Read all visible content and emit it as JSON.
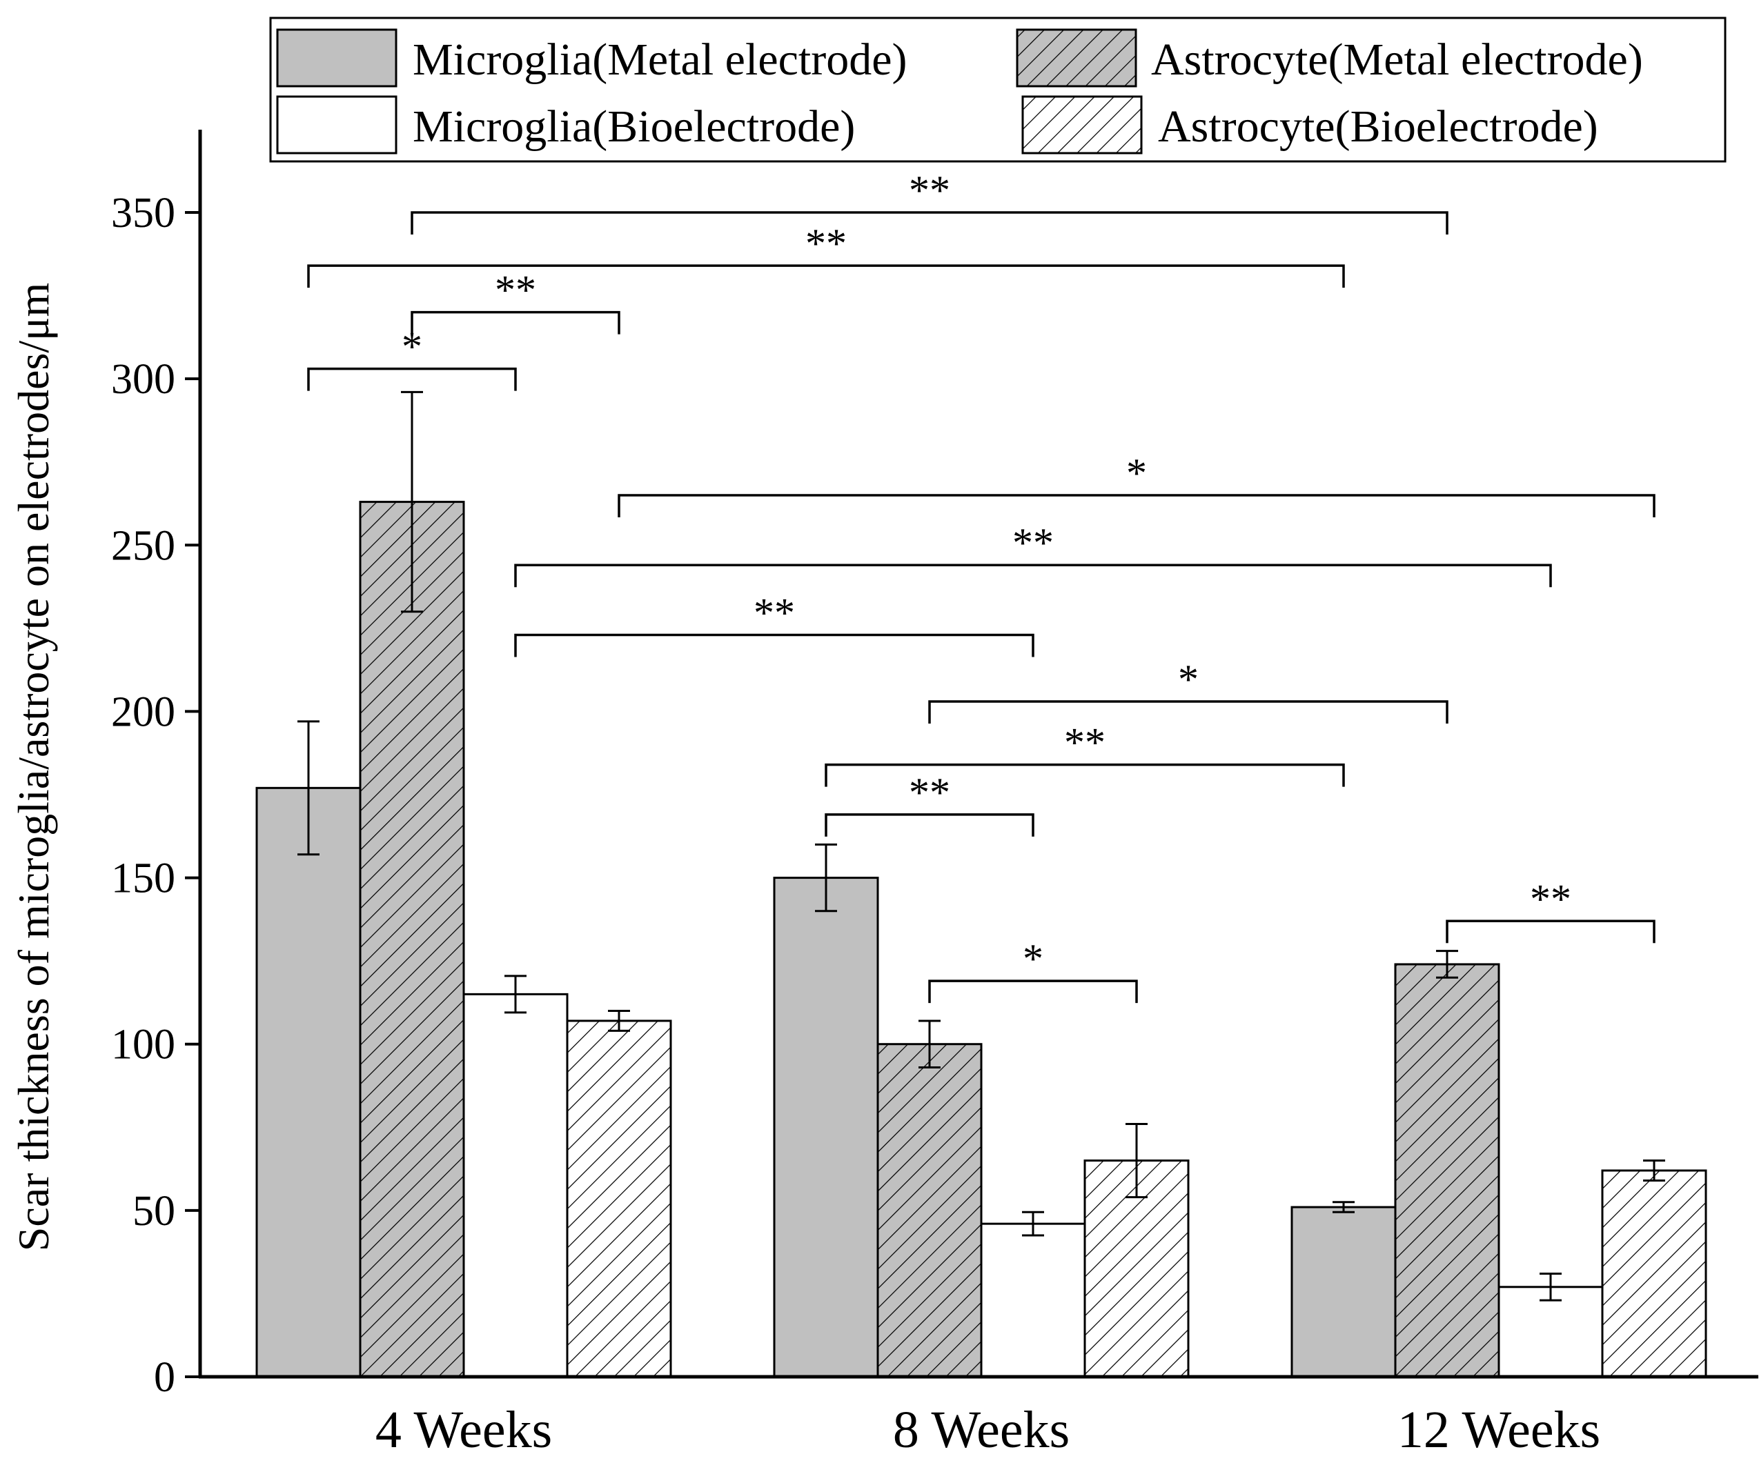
{
  "chart_data": {
    "type": "bar",
    "title": "",
    "xlabel": "",
    "ylabel": "Scar thickness of microglia/astrocyte on electrodes/μm",
    "ylim": [
      0,
      375
    ],
    "yticks": [
      0,
      50,
      100,
      150,
      200,
      250,
      300,
      350
    ],
    "categories": [
      "4 Weeks",
      "8 Weeks",
      "12 Weeks"
    ],
    "legend_position": "top",
    "series": [
      {
        "name": "Microglia(Metal electrode)",
        "fill": "#c0c0c0",
        "hatch": false,
        "values": [
          177,
          150,
          51
        ],
        "errors": [
          20,
          10,
          1.5
        ]
      },
      {
        "name": "Astrocyte(Metal electrode)",
        "fill": "#c0c0c0",
        "hatch": true,
        "values": [
          263,
          100,
          124
        ],
        "errors": [
          33,
          7,
          4
        ]
      },
      {
        "name": "Microglia(Bioelectrode)",
        "fill": "#ffffff",
        "hatch": false,
        "values": [
          115,
          46,
          27
        ],
        "errors": [
          5.5,
          3.5,
          4
        ]
      },
      {
        "name": "Astrocyte(Bioelectrode)",
        "fill": "#ffffff",
        "hatch": true,
        "values": [
          107,
          65,
          62
        ],
        "errors": [
          3,
          11,
          3
        ]
      }
    ],
    "significance": [
      {
        "label": "**",
        "from": [
          0,
          1
        ],
        "to": [
          2,
          1
        ],
        "level": 350
      },
      {
        "label": "**",
        "from": [
          0,
          0
        ],
        "to": [
          2,
          0
        ],
        "level": 334
      },
      {
        "label": "**",
        "from": [
          0,
          1
        ],
        "to": [
          0,
          3
        ],
        "level": 320
      },
      {
        "label": "*",
        "from": [
          0,
          0
        ],
        "to": [
          0,
          2
        ],
        "level": 303
      },
      {
        "label": "*",
        "from": [
          0,
          3
        ],
        "to": [
          2,
          3
        ],
        "level": 265
      },
      {
        "label": "**",
        "from": [
          0,
          2
        ],
        "to": [
          2,
          2
        ],
        "level": 244
      },
      {
        "label": "**",
        "from": [
          0,
          2
        ],
        "to": [
          1,
          2
        ],
        "level": 223
      },
      {
        "label": "*",
        "from": [
          1,
          1
        ],
        "to": [
          2,
          1
        ],
        "level": 203
      },
      {
        "label": "**",
        "from": [
          1,
          0
        ],
        "to": [
          2,
          0
        ],
        "level": 184
      },
      {
        "label": "**",
        "from": [
          1,
          0
        ],
        "to": [
          1,
          2
        ],
        "level": 169
      },
      {
        "label": "*",
        "from": [
          1,
          1
        ],
        "to": [
          1,
          3
        ],
        "level": 119
      },
      {
        "label": "**",
        "from": [
          2,
          1
        ],
        "to": [
          2,
          3
        ],
        "level": 137
      }
    ]
  }
}
